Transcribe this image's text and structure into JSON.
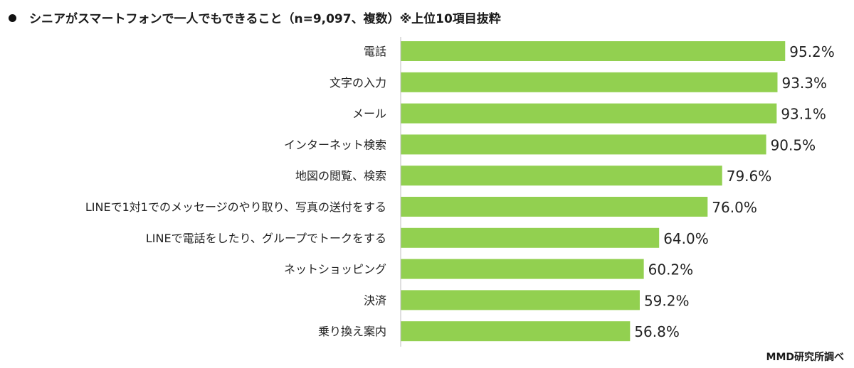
{
  "chart_data": {
    "type": "bar",
    "orientation": "horizontal",
    "title": "シニアがスマートフォンで一人でもできること（n=9,097、複数）※上位10項目抜粋",
    "source": "MMD研究所調べ",
    "categories": [
      "電話",
      "文字の入力",
      "メール",
      "インターネット検索",
      "地図の閲覧、検索",
      "LINEで1対1でのメッセージのやり取り、写真の送付をする",
      "LINEで電話をしたり、グループでトークをする",
      "ネットショッピング",
      "決済",
      "乗り換え案内"
    ],
    "values": [
      95.2,
      93.3,
      93.1,
      90.5,
      79.6,
      76.0,
      64.0,
      60.2,
      59.2,
      56.8
    ],
    "data_labels": [
      "95.2%",
      "93.3%",
      "93.1%",
      "90.5%",
      "79.6%",
      "76.0%",
      "64.0%",
      "60.2%",
      "59.2%",
      "56.8%"
    ],
    "unit": "%",
    "xlim": [
      0,
      100
    ],
    "grid": false,
    "legend": "none",
    "bar_color": "#92d050"
  }
}
